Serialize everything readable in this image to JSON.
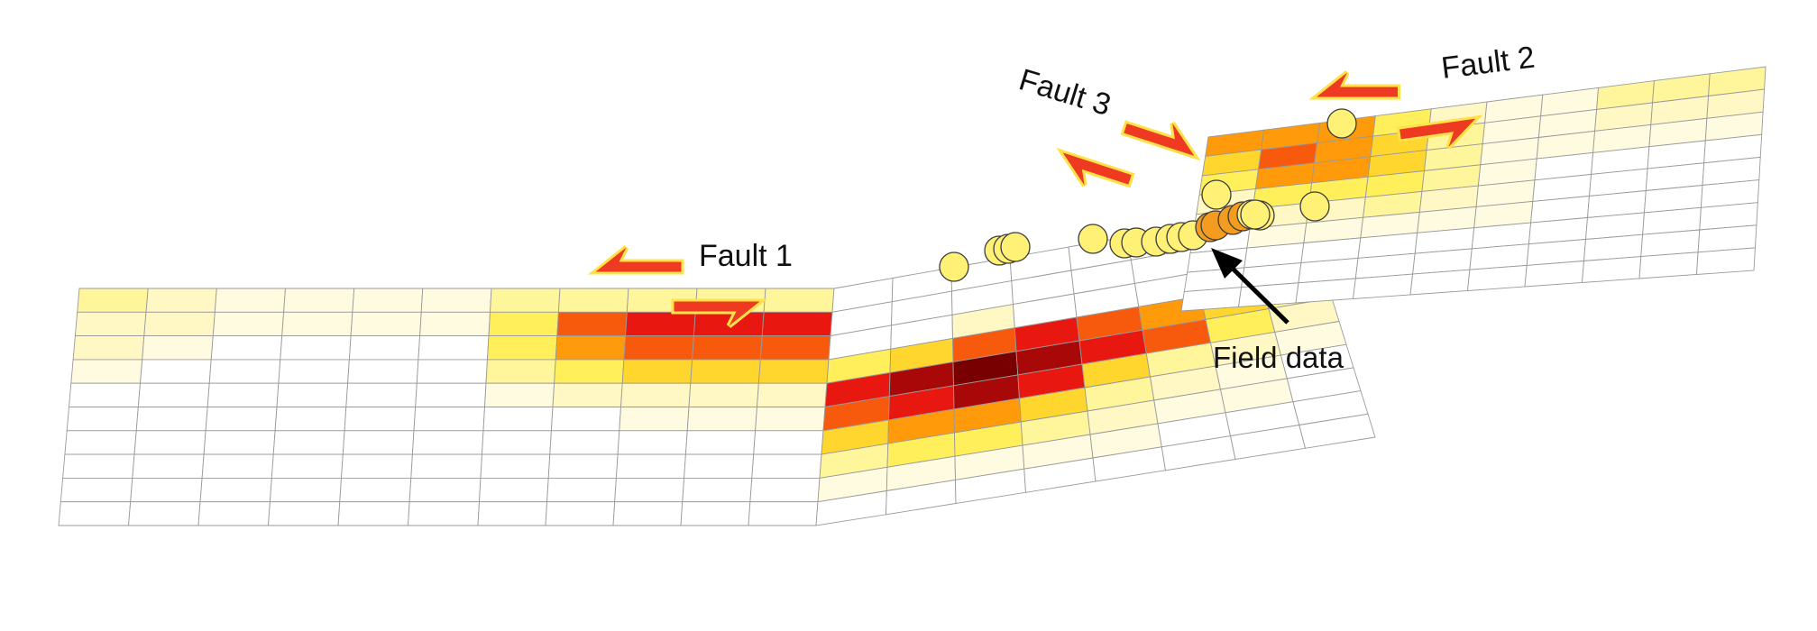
{
  "labels": {
    "fault1": "Fault 1",
    "fault2": "Fault 2",
    "fault3": "Fault 3",
    "field": "Field data"
  },
  "colors": {
    "slip_scale": [
      "#ffffff",
      "#fffbe0",
      "#fff7c4",
      "#fff59a",
      "#ffef5a",
      "#ffd62e",
      "#ff9a0a",
      "#f75a0c",
      "#e81810",
      "#a80808",
      "#780000"
    ],
    "arrow_fill": "#ee3a20",
    "arrow_halo": "#ffe24a",
    "marker_fill": "#fff176",
    "marker_fill_orange": "#f39c1f",
    "mesh_line": "#9a9a9a",
    "pointer": "#000000"
  },
  "chart_data": {
    "type": "heatmap",
    "description_units": "slip level (0 = none, 10 = maximum), read as cell colour",
    "fault1": {
      "columns": 11,
      "rows": 10,
      "slip_levels": [
        [
          3,
          2,
          1,
          1,
          1,
          1,
          3,
          3,
          3,
          3,
          3
        ],
        [
          2,
          2,
          1,
          1,
          1,
          1,
          4,
          7,
          8,
          8,
          8
        ],
        [
          2,
          1,
          0,
          0,
          0,
          0,
          4,
          6,
          7,
          7,
          7
        ],
        [
          1,
          0,
          0,
          0,
          0,
          0,
          3,
          4,
          5,
          5,
          5
        ],
        [
          0,
          0,
          0,
          0,
          0,
          0,
          1,
          2,
          2,
          2,
          2
        ],
        [
          0,
          0,
          0,
          0,
          0,
          0,
          0,
          0,
          1,
          1,
          1
        ],
        [
          0,
          0,
          0,
          0,
          0,
          0,
          0,
          0,
          0,
          0,
          0
        ],
        [
          0,
          0,
          0,
          0,
          0,
          0,
          0,
          0,
          0,
          0,
          0
        ],
        [
          0,
          0,
          0,
          0,
          0,
          0,
          0,
          0,
          0,
          0,
          0
        ],
        [
          0,
          0,
          0,
          0,
          0,
          0,
          0,
          0,
          0,
          0,
          0
        ]
      ]
    },
    "fault3": {
      "columns": 8,
      "rows": 10,
      "slip_levels": [
        [
          0,
          0,
          0,
          0,
          0,
          0,
          0,
          0
        ],
        [
          0,
          0,
          0,
          0,
          0,
          0,
          0,
          0
        ],
        [
          0,
          0,
          2,
          0,
          0,
          0,
          0,
          0
        ],
        [
          4,
          5,
          7,
          8,
          7,
          6,
          5,
          3
        ],
        [
          8,
          9,
          10,
          9,
          8,
          7,
          4,
          2
        ],
        [
          7,
          8,
          9,
          8,
          5,
          3,
          2,
          1
        ],
        [
          5,
          6,
          6,
          5,
          3,
          2,
          1,
          0
        ],
        [
          3,
          4,
          4,
          3,
          2,
          1,
          1,
          0
        ],
        [
          1,
          1,
          1,
          1,
          1,
          0,
          0,
          0
        ],
        [
          0,
          0,
          0,
          0,
          0,
          0,
          0,
          0
        ]
      ]
    },
    "fault2": {
      "columns": 10,
      "rows": 9,
      "slip_levels": [
        [
          6,
          6,
          6,
          4,
          2,
          1,
          1,
          3,
          3,
          3
        ],
        [
          5,
          7,
          6,
          5,
          3,
          1,
          1,
          2,
          2,
          2
        ],
        [
          4,
          6,
          6,
          5,
          3,
          1,
          1,
          1,
          1,
          1
        ],
        [
          2,
          4,
          4,
          4,
          3,
          1,
          0,
          0,
          0,
          0
        ],
        [
          1,
          2,
          2,
          3,
          2,
          1,
          0,
          0,
          0,
          0
        ],
        [
          0,
          1,
          1,
          1,
          1,
          1,
          0,
          0,
          0,
          0
        ],
        [
          0,
          0,
          0,
          0,
          0,
          0,
          0,
          0,
          0,
          0
        ],
        [
          0,
          0,
          0,
          0,
          0,
          0,
          0,
          0,
          0,
          0
        ],
        [
          0,
          0,
          0,
          0,
          0,
          0,
          0,
          0,
          0,
          0
        ]
      ]
    },
    "field_data_points": 21
  }
}
